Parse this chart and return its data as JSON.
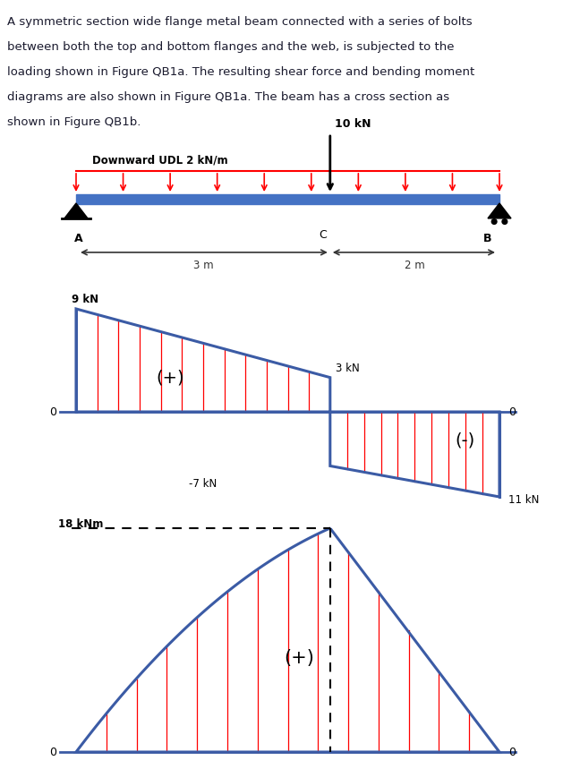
{
  "text_lines": [
    "A symmetric section wide flange metal beam connected with a series of bolts",
    "between both the top and bottom flanges and the web, is subjected to the",
    "loading shown in Figure QB1a. The resulting shear force and bending moment",
    "diagrams are also shown in Figure QB1a. The beam has a cross section as",
    "shown in Figure QB1b."
  ],
  "beam_label_A": "A",
  "beam_label_B": "B",
  "beam_label_C": "C",
  "udl_label": "Downward UDL 2 kN/m",
  "point_load_label": "10 kN",
  "dist_AC": "3 m",
  "dist_CB": "2 m",
  "sfd_label_9kN": "9 kN",
  "sfd_label_3kN": "3 kN",
  "sfd_label_neg7kN": "-7 kN",
  "sfd_label_11kN": "11 kN",
  "sfd_plus": "(+)",
  "sfd_minus": "(-)",
  "bmd_label_18kNm": "18 kNm",
  "bmd_plus": "(+)",
  "zero_label": "0",
  "blue_color": "#3B5BA5",
  "red_color": "#FF0000",
  "beam_color": "#4472C4"
}
